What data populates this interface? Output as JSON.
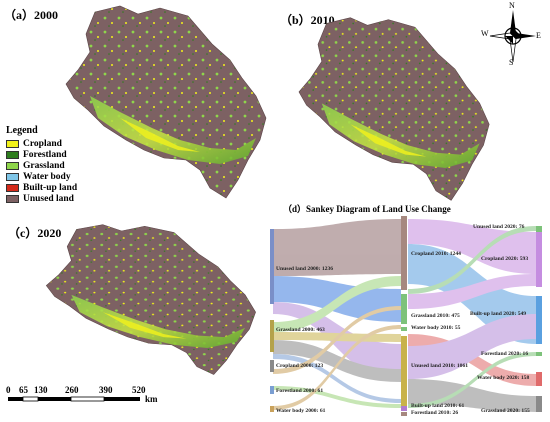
{
  "panels": {
    "a": {
      "label": "（a）2000"
    },
    "b": {
      "label": "（b）2010"
    },
    "c": {
      "label": "（c）2020"
    },
    "d": {
      "label": "（d）Sankey Diagram of Land Use Change"
    }
  },
  "legend": {
    "title": "Legend",
    "items": [
      {
        "label": "Cropland",
        "color": "#f2f21a"
      },
      {
        "label": "Forestland",
        "color": "#2e7d1e"
      },
      {
        "label": "Grassland",
        "color": "#8fd64b"
      },
      {
        "label": "Water body",
        "color": "#7fc6e8"
      },
      {
        "label": "Built-up land",
        "color": "#d42a1a"
      },
      {
        "label": "Unused land",
        "color": "#7d6163"
      }
    ]
  },
  "compass": {
    "n": "N",
    "s": "S",
    "e": "E",
    "w": "W"
  },
  "scale_bar": {
    "ticks": [
      "0",
      "65",
      "130",
      "260",
      "390",
      "520"
    ],
    "unit": "km"
  },
  "sankey": {
    "nodes_2000": [
      {
        "label": "Unused land 2000: 1236",
        "value": 1236,
        "color": "#7a8fc8"
      },
      {
        "label": "Grassland 2000: 463",
        "value": 463,
        "color": "#b4a24a"
      },
      {
        "label": "Cropland 2000: 123",
        "value": 123,
        "color": "#8a8a8a"
      },
      {
        "label": "Forestland 2000: 61",
        "value": 61,
        "color": "#7a9ed2"
      },
      {
        "label": "Water body 2000: 61",
        "value": 61,
        "color": "#c9a25c"
      }
    ],
    "nodes_2010": [
      {
        "label": "Cropland 2010: 1244",
        "value": 1244,
        "color": "#a6887f"
      },
      {
        "label": "Grassland 2010: 475",
        "value": 475,
        "color": "#7dc27a"
      },
      {
        "label": "Water body 2010: 55",
        "value": 55,
        "color": "#7dc27a"
      },
      {
        "label": "Unused land 2010: 1061",
        "value": 1061,
        "color": "#c8b24a"
      },
      {
        "label": "Built-up land 2010: 61",
        "value": 61,
        "color": "#b07bd0"
      },
      {
        "label": "Forestland 2010: 26",
        "value": 26,
        "color": "#a6887f"
      }
    ],
    "nodes_2020": [
      {
        "label": "Unused land 2020: 76",
        "value": 76,
        "color": "#7dc27a"
      },
      {
        "label": "Cropland 2020: 593",
        "value": 593,
        "color": "#c58de0"
      },
      {
        "label": "Built-up land 2020: 549",
        "value": 549,
        "color": "#5aa0e0"
      },
      {
        "label": "Forestland 2020: 16",
        "value": 16,
        "color": "#7dc27a"
      },
      {
        "label": "Water body 2020: 158",
        "value": 158,
        "color": "#e06a6a"
      },
      {
        "label": "Grassland 2020: 155",
        "value": 155,
        "color": "#8a8a8a"
      }
    ]
  }
}
